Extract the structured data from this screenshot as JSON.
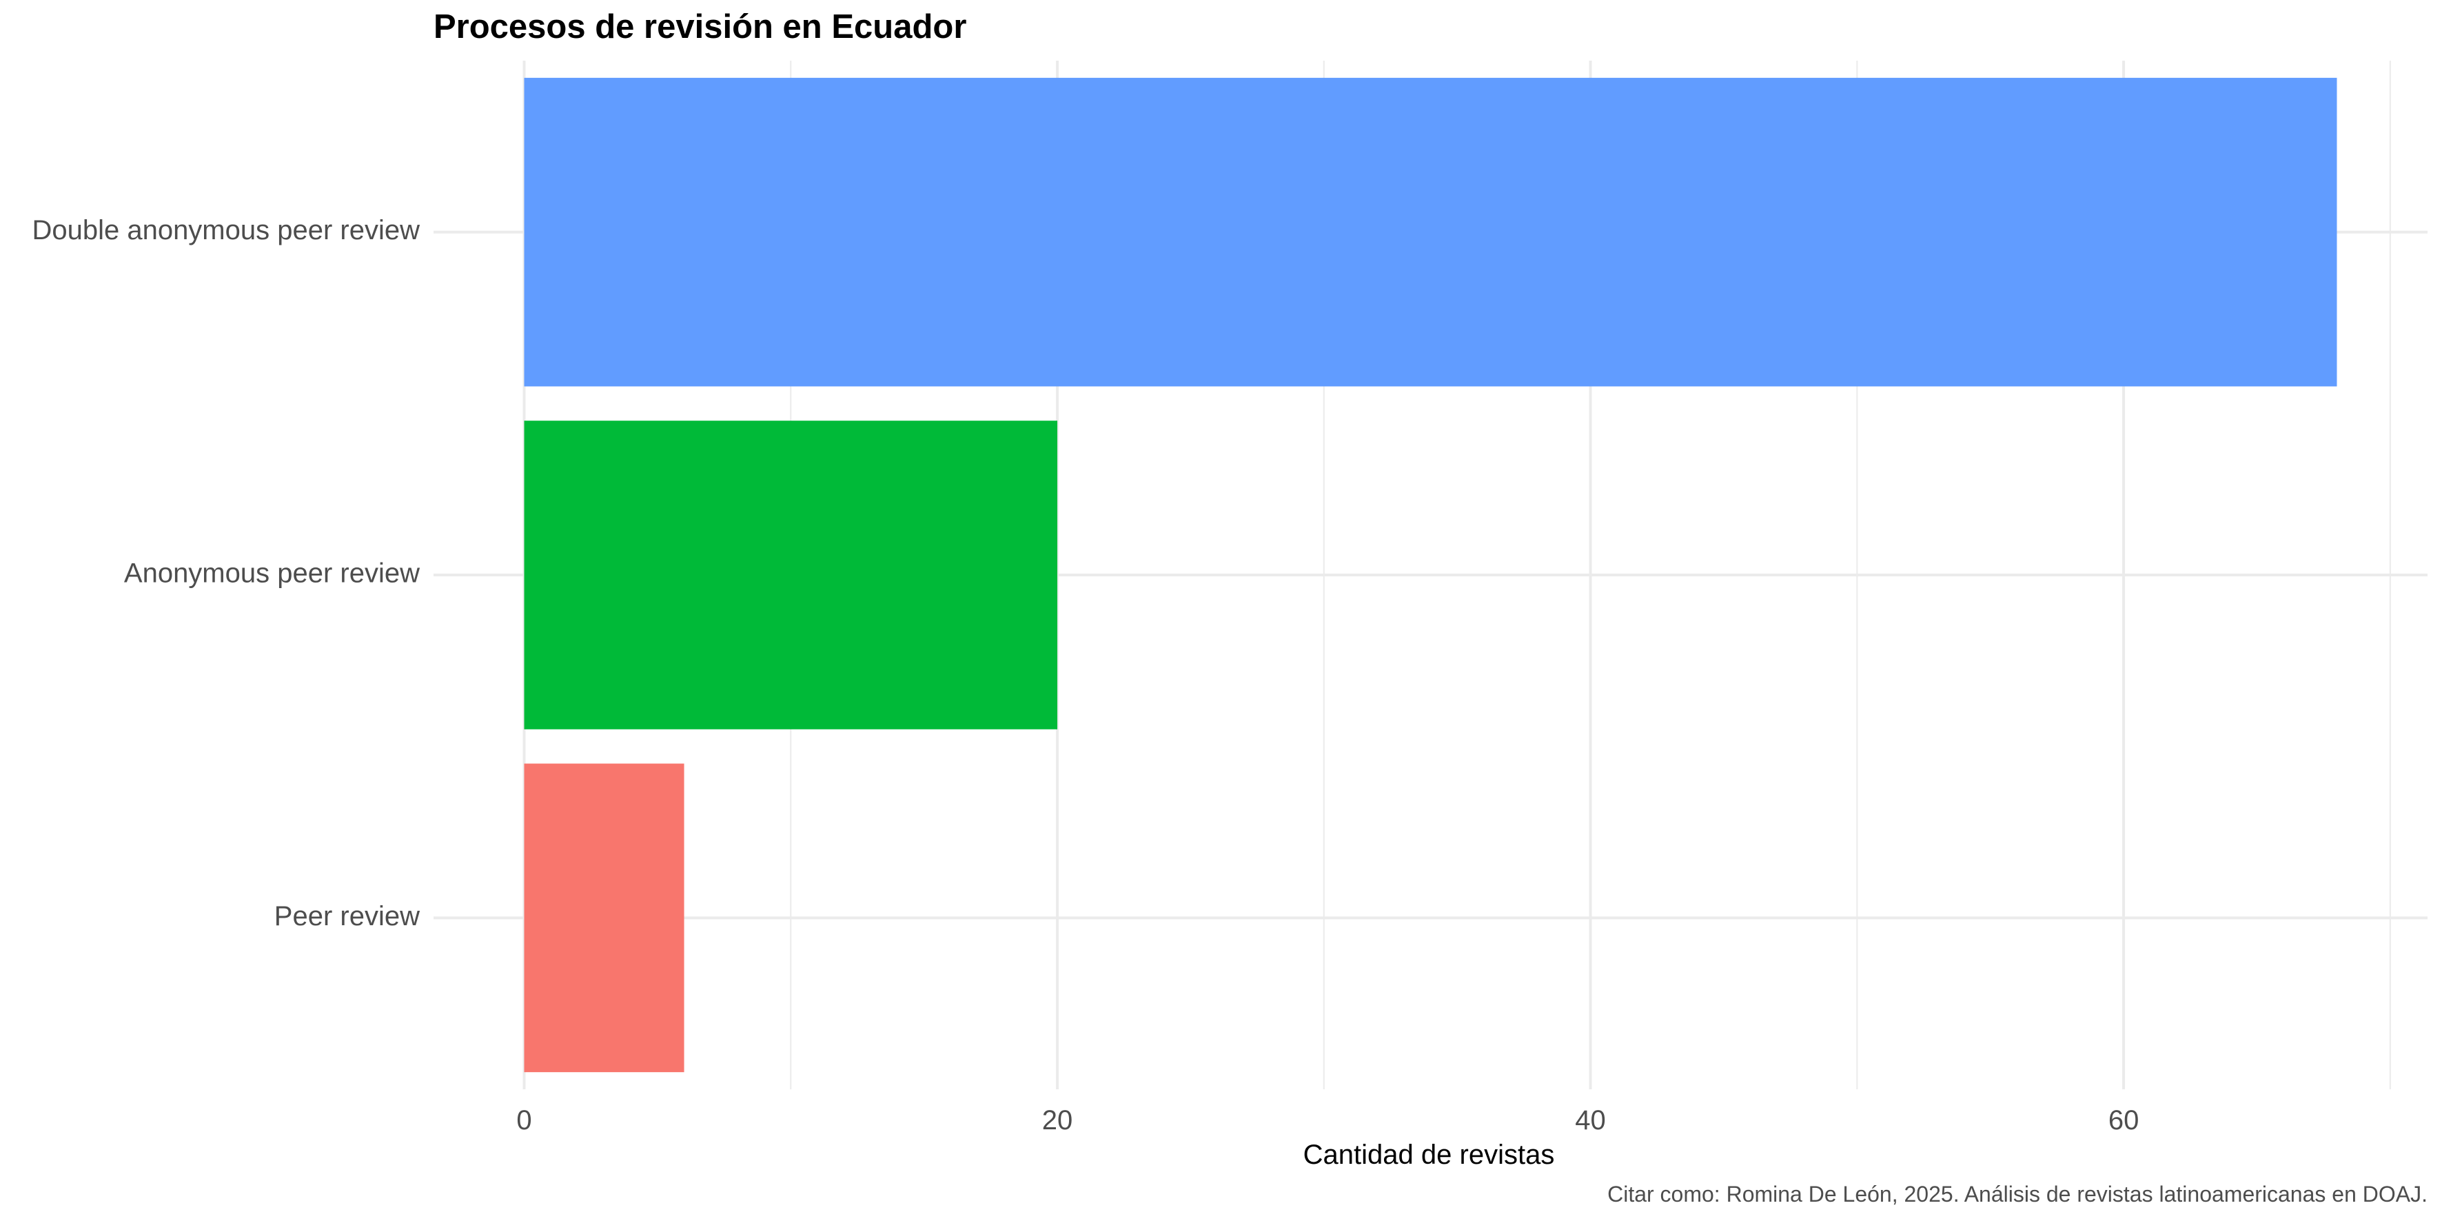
{
  "chart_data": {
    "type": "bar",
    "orientation": "horizontal",
    "title": "Procesos de revisión en Ecuador",
    "xlabel": "Cantidad de revistas",
    "ylabel": "",
    "categories": [
      "Double anonymous peer review",
      "Anonymous peer review",
      "Peer review"
    ],
    "values": [
      68,
      20,
      6
    ],
    "colors": [
      "#619CFF",
      "#00BA38",
      "#F8766D"
    ],
    "xlim": [
      -3.4,
      71.4
    ],
    "xticks": [
      0,
      20,
      40,
      60
    ],
    "xtick_labels": [
      "0",
      "20",
      "40",
      "60"
    ],
    "grid": true,
    "legend": "none",
    "caption": "Citar como: Romina De León, 2025. Análisis de revistas latinoamericanas en DOAJ."
  }
}
